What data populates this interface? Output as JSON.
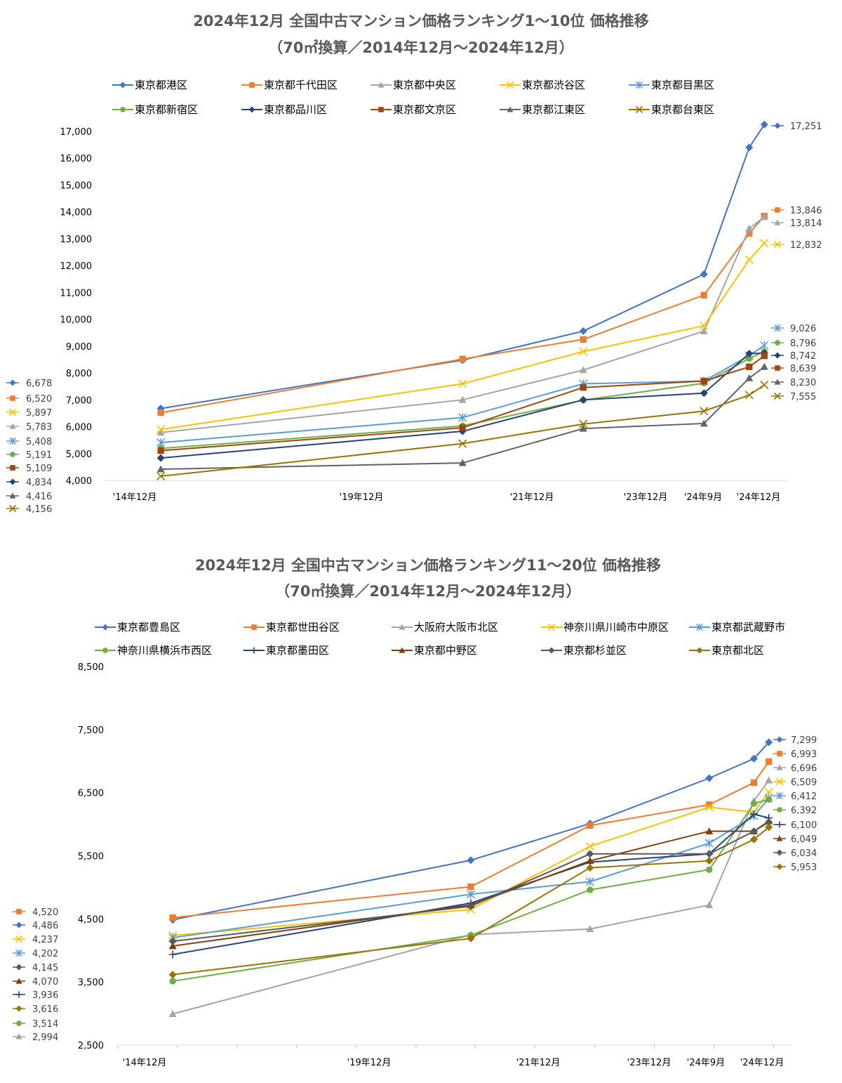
{
  "chart_data": [
    {
      "type": "line",
      "title": "2024年12月 全国中古マンション価格ランキング1～10位 価格推移",
      "subtitle": "（70㎡換算／2014年12月～2024年12月）",
      "categories": [
        "'14年12月",
        "'19年12月",
        "'21年12月",
        "'23年12月",
        "'24年9月",
        "'24年12月"
      ],
      "x_positions": [
        2014.92,
        2019.92,
        2021.92,
        2023.92,
        2024.67,
        2024.92
      ],
      "xlim": [
        2014.0,
        2025.3
      ],
      "ylim": [
        4000,
        17000
      ],
      "yticks": [
        4000,
        5000,
        6000,
        7000,
        8000,
        9000,
        10000,
        11000,
        12000,
        13000,
        14000,
        15000,
        16000,
        17000
      ],
      "ytick_labels": [
        "4,000",
        "5,000",
        "6,000",
        "7,000",
        "8,000",
        "9,000",
        "10,000",
        "11,000",
        "12,000",
        "13,000",
        "14,000",
        "15,000",
        "16,000",
        "17,000"
      ],
      "series": [
        {
          "name": "東京都港区",
          "color": "#4472C4",
          "marker": "diamond",
          "values": [
            6678,
            8480,
            9560,
            11680,
            16400,
            17251
          ],
          "start_label": "6,678",
          "end_label": "17,251"
        },
        {
          "name": "東京都千代田区",
          "color": "#ED7D31",
          "marker": "square",
          "values": [
            6520,
            8520,
            9250,
            10900,
            13200,
            13846
          ],
          "start_label": "6,520",
          "end_label": "13,846"
        },
        {
          "name": "東京都中央区",
          "color": "#A5A5A5",
          "marker": "triangle",
          "values": [
            5783,
            7000,
            8110,
            9560,
            13380,
            13814
          ],
          "start_label": "5,783",
          "end_label": "13,814"
        },
        {
          "name": "東京都渋谷区",
          "color": "#FFC000",
          "marker": "x",
          "values": [
            5897,
            7600,
            8800,
            9760,
            12220,
            12832
          ],
          "start_label": "5,897",
          "end_label": "12,832"
        },
        {
          "name": "東京都目黒区",
          "color": "#5B9BD5",
          "marker": "star",
          "values": [
            5408,
            6340,
            7600,
            7700,
            8650,
            9026
          ],
          "start_label": "5,408",
          "end_label": "9,026"
        },
        {
          "name": "東京都新宿区",
          "color": "#70AD47",
          "marker": "circle",
          "values": [
            5191,
            6030,
            6990,
            7620,
            8540,
            8796
          ],
          "start_label": "5,191",
          "end_label": "8,796"
        },
        {
          "name": "東京都品川区",
          "color": "#264478",
          "marker": "diamond",
          "values": [
            4834,
            5830,
            7000,
            7250,
            8720,
            8742
          ],
          "start_label": "4,834",
          "end_label": "8,742"
        },
        {
          "name": "東京都文京区",
          "color": "#9E480E",
          "marker": "square",
          "values": [
            5109,
            5960,
            7460,
            7700,
            8230,
            8639
          ],
          "start_label": "5,109",
          "end_label": "8,639"
        },
        {
          "name": "東京都江東区",
          "color": "#636363",
          "marker": "triangle",
          "values": [
            4416,
            4650,
            5930,
            6120,
            7810,
            8230
          ],
          "start_label": "4,416",
          "end_label": "8,230"
        },
        {
          "name": "東京都台東区",
          "color": "#997300",
          "marker": "x",
          "values": [
            4156,
            5370,
            6100,
            6580,
            7180,
            7555
          ],
          "start_label": "4,156",
          "end_label": "7,555"
        }
      ]
    },
    {
      "type": "line",
      "title": "2024年12月 全国中古マンション価格ランキング11～20位 価格推移",
      "subtitle": "（70㎡換算／2014年12月～2024年12月）",
      "categories": [
        "'14年12月",
        "'19年12月",
        "'21年12月",
        "'23年12月",
        "'24年9月",
        "'24年12月"
      ],
      "x_positions": [
        2014.92,
        2019.92,
        2021.92,
        2023.92,
        2024.67,
        2024.92
      ],
      "xlim": [
        2014.0,
        2025.3
      ],
      "ylim": [
        2500,
        8500
      ],
      "yticks": [
        2500,
        3500,
        4500,
        5500,
        6500,
        7500,
        8500
      ],
      "ytick_labels": [
        "2,500",
        "3,500",
        "4,500",
        "5,500",
        "6,500",
        "7,500",
        "8,500"
      ],
      "series": [
        {
          "name": "東京都豊島区",
          "color": "#4472C4",
          "marker": "diamond",
          "values": [
            4486,
            5430,
            6010,
            6730,
            7040,
            7299
          ],
          "start_label": "4,486",
          "end_label": "7,299"
        },
        {
          "name": "東京都世田谷区",
          "color": "#ED7D31",
          "marker": "square",
          "values": [
            4520,
            5010,
            5980,
            6310,
            6660,
            6993
          ],
          "start_label": "4,520",
          "end_label": "6,993"
        },
        {
          "name": "大阪府大阪市北区",
          "color": "#A5A5A5",
          "marker": "triangle",
          "values": [
            2994,
            4250,
            4340,
            4720,
            6370,
            6696
          ],
          "start_label": "2,994",
          "end_label": "6,696"
        },
        {
          "name": "神奈川県川崎市中原区",
          "color": "#FFC000",
          "marker": "x",
          "values": [
            4237,
            4650,
            5650,
            6270,
            6190,
            6509
          ],
          "start_label": "4,237",
          "end_label": "6,509"
        },
        {
          "name": "東京都武蔵野市",
          "color": "#5B9BD5",
          "marker": "star",
          "values": [
            4202,
            4890,
            5090,
            5700,
            6130,
            6412
          ],
          "start_label": "4,202",
          "end_label": "6,412"
        },
        {
          "name": "神奈川県横浜市西区",
          "color": "#70AD47",
          "marker": "circle",
          "values": [
            3514,
            4240,
            4960,
            5280,
            6330,
            6392
          ],
          "start_label": "3,514",
          "end_label": "6,392"
        },
        {
          "name": "東京都墨田区",
          "color": "#264478",
          "marker": "plus",
          "values": [
            3936,
            4750,
            5400,
            5530,
            6160,
            6100
          ],
          "start_label": "3,936",
          "end_label": "6,100"
        },
        {
          "name": "東京都中野区",
          "color": "#843C0C",
          "marker": "triangle",
          "values": [
            4070,
            4720,
            5420,
            5890,
            5890,
            6049
          ],
          "start_label": "4,070",
          "end_label": "6,049"
        },
        {
          "name": "東京都杉並区",
          "color": "#595959",
          "marker": "diamond",
          "values": [
            4145,
            4700,
            5530,
            5530,
            5890,
            6034
          ],
          "start_label": "4,145",
          "end_label": "6,034"
        },
        {
          "name": "東京都北区",
          "color": "#997300",
          "marker": "diamond",
          "values": [
            3616,
            4190,
            5310,
            5420,
            5760,
            5953
          ],
          "start_label": "3,616",
          "end_label": "5,953"
        }
      ]
    }
  ]
}
